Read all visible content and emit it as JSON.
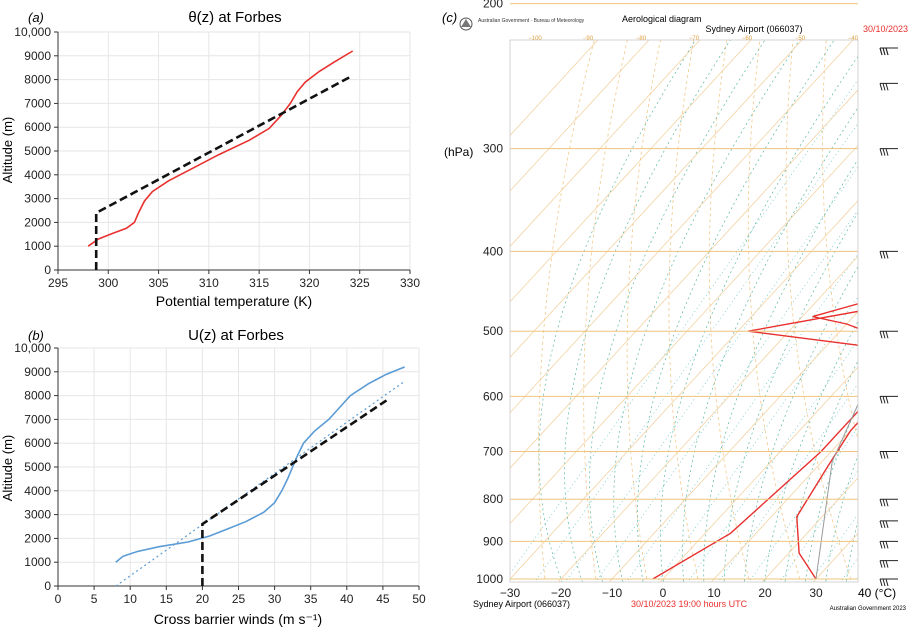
{
  "chart_data": [
    {
      "type": "line",
      "panel": "(a)",
      "title": "θ(z) at Forbes",
      "xlabel": "Potential temperature (K)",
      "ylabel": "Altitude (m)",
      "xlim": [
        295,
        330
      ],
      "ylim": [
        0,
        10000
      ],
      "xticks": [
        "295",
        "300",
        "305",
        "310",
        "315",
        "320",
        "325",
        "330"
      ],
      "yticks": [
        "0",
        "1000",
        "2000",
        "3000",
        "4000",
        "5000",
        "6000",
        "7000",
        "8000",
        "9000",
        "10,000"
      ],
      "grid": true,
      "series": [
        {
          "style": "solid-red",
          "color": "#e8312f",
          "points": [
            [
              298.0,
              1000
            ],
            [
              299.0,
              1300
            ],
            [
              300.5,
              1550
            ],
            [
              301.8,
              1750
            ],
            [
              302.6,
              2000
            ],
            [
              303.0,
              2400
            ],
            [
              303.6,
              2900
            ],
            [
              304.4,
              3300
            ],
            [
              306.0,
              3750
            ],
            [
              308.5,
              4300
            ],
            [
              311.0,
              4850
            ],
            [
              314.0,
              5450
            ],
            [
              316.0,
              5950
            ],
            [
              317.2,
              6500
            ],
            [
              318.1,
              7000
            ],
            [
              318.8,
              7500
            ],
            [
              319.6,
              7900
            ],
            [
              321.0,
              8350
            ],
            [
              322.5,
              8750
            ],
            [
              324.3,
              9200
            ]
          ]
        },
        {
          "style": "dashed-black",
          "color": "#111111",
          "points": [
            [
              298.8,
              0
            ],
            [
              298.8,
              2400
            ],
            [
              324.0,
              8100
            ]
          ]
        }
      ]
    },
    {
      "type": "line",
      "panel": "(b)",
      "title": "U(z) at Forbes",
      "xlabel": "Cross barrier winds (m s⁻¹)",
      "ylabel": "Altitude (m)",
      "xlim": [
        0,
        50
      ],
      "ylim": [
        0,
        10000
      ],
      "xticks": [
        "0",
        "5",
        "10",
        "15",
        "20",
        "25",
        "30",
        "35",
        "40",
        "45",
        "50"
      ],
      "yticks": [
        "0",
        "1000",
        "2000",
        "3000",
        "4000",
        "5000",
        "6000",
        "7000",
        "8000",
        "9000",
        "10,000"
      ],
      "grid": true,
      "series": [
        {
          "style": "solid-blue",
          "color": "#5b9bd5",
          "points": [
            [
              8.0,
              1000
            ],
            [
              9.0,
              1250
            ],
            [
              11.0,
              1450
            ],
            [
              14.0,
              1650
            ],
            [
              18.0,
              1850
            ],
            [
              21.0,
              2100
            ],
            [
              23.5,
              2400
            ],
            [
              26.0,
              2700
            ],
            [
              28.5,
              3100
            ],
            [
              30.0,
              3500
            ],
            [
              31.0,
              4000
            ],
            [
              31.8,
              4500
            ],
            [
              32.5,
              5000
            ],
            [
              33.2,
              5500
            ],
            [
              34.0,
              6000
            ],
            [
              35.5,
              6500
            ],
            [
              37.5,
              7000
            ],
            [
              39.0,
              7500
            ],
            [
              40.5,
              8000
            ],
            [
              43.0,
              8500
            ],
            [
              45.5,
              8900
            ],
            [
              48.0,
              9200
            ]
          ]
        },
        {
          "style": "dotted-blue",
          "color": "#5b9bd5",
          "points": [
            [
              8.0,
              0
            ],
            [
              48.0,
              8600
            ]
          ]
        },
        {
          "style": "dashed-black",
          "color": "#111111",
          "points": [
            [
              20.0,
              0
            ],
            [
              20.0,
              2600
            ],
            [
              45.5,
              7800
            ]
          ]
        }
      ]
    },
    {
      "type": "line",
      "panel": "(c)",
      "title": "Aerological diagram",
      "header_left": "Australian Government · Bureau of Meteorology",
      "header_station": "Sydney Airport (066037)",
      "header_date": "30/10/2023",
      "footer_station": "Sydney Airport (066037)",
      "footer_time": "30/10/2023 19:00 hours UTC",
      "footer_copyright": "Australian Government 2023",
      "ylabel": "(hPa)",
      "xunit": "40 (°C)",
      "y_scale": "log-pressure",
      "yticks": [
        "200",
        "300",
        "400",
        "500",
        "600",
        "700",
        "800",
        "900",
        "1000"
      ],
      "xticks": [
        "−30",
        "−20",
        "−10",
        "0",
        "10",
        "20",
        "30"
      ],
      "top_ticks": [
        "−100",
        "−90",
        "−80",
        "−70",
        "−60",
        "−50",
        "−40"
      ],
      "series": [
        {
          "name": "",
          "style": "solid-red",
          "color": "#e8312f",
          "role": "temperature",
          "points_T_p": [
            [
              30,
              1000
            ],
            [
              22,
              930
            ],
            [
              15,
              840
            ],
            [
              12,
              730
            ],
            [
              10,
              660
            ],
            [
              10,
              610
            ],
            [
              7,
              600
            ],
            [
              4,
              540
            ],
            [
              0,
              510
            ],
            [
              -10,
              490
            ],
            [
              -18,
              480
            ],
            [
              -4,
              445
            ],
            [
              -2,
              410
            ],
            [
              -5,
              370
            ],
            [
              -8,
              335
            ],
            [
              -11,
              310
            ],
            [
              -10,
              280
            ],
            [
              -14,
              240
            ],
            [
              -18,
              220
            ],
            [
              -24,
              205
            ],
            [
              -30,
              180
            ],
            [
              -34,
              150
            ],
            [
              -36,
              120
            ]
          ]
        },
        {
          "name": "",
          "style": "solid-red",
          "color": "#e8312f",
          "role": "dewpoint",
          "points_T_p": [
            [
              -2,
              1000
            ],
            [
              5,
              880
            ],
            [
              8,
              700
            ],
            [
              8,
              600
            ],
            [
              6,
              540
            ],
            [
              -4,
              520
            ],
            [
              -28,
              500
            ],
            [
              -8,
              470
            ],
            [
              -1,
              450
            ],
            [
              -8,
              420
            ],
            [
              -14,
              370
            ],
            [
              -16,
              330
            ],
            [
              -17,
              300
            ],
            [
              -18,
              250
            ],
            [
              -13,
              230
            ],
            [
              -5,
              200
            ],
            [
              3,
              160
            ],
            [
              6,
              130
            ],
            [
              9,
              100
            ]
          ]
        },
        {
          "name": "",
          "style": "solid-grey",
          "color": "#9a9a9a",
          "role": "parcel",
          "points_T_p": [
            [
              30,
              1000
            ],
            [
              12,
              720
            ],
            [
              6,
              600
            ],
            [
              -2,
              500
            ],
            [
              -12,
              400
            ],
            [
              -25,
              300
            ],
            [
              -40,
              220
            ]
          ]
        }
      ],
      "wind_barbs_levels": [
        "150",
        "200",
        "250",
        "300",
        "400",
        "500",
        "600",
        "700",
        "800",
        "850",
        "900",
        "950",
        "1000"
      ]
    }
  ]
}
